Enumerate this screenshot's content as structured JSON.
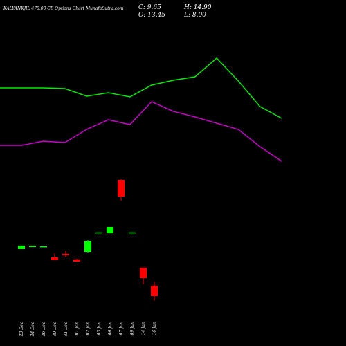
{
  "chart_data": [
    {
      "type": "candlestick",
      "title": "KALYANKJIL 470.00 CE Options Chart MunafaSutra.com",
      "ohlc_labels": [
        "C: 9.65",
        "H: 14.90",
        "O: 13.45",
        "L: 8.00"
      ],
      "categories": [
        "23 Dec",
        "24 Dec",
        "26 Dec",
        "30 Dec",
        "31 Dec",
        "01 Jan",
        "02 Jan",
        "03 Jan",
        "06 Jan",
        "07 Jan",
        "09 Jan",
        "14 Jan",
        "16 Jan"
      ],
      "open": [
        26.86,
        27.62,
        27.87,
        23.82,
        25.09,
        23.06,
        25.85,
        32.93,
        32.68,
        52.16,
        32.93,
        20.03,
        13.45
      ],
      "close": [
        28.12,
        28.12,
        27.9,
        22.81,
        24.58,
        22.31,
        29.9,
        33.0,
        34.96,
        46.09,
        33.0,
        16.23,
        9.65
      ],
      "high": [
        28.12,
        28.12,
        27.9,
        25.34,
        26.35,
        23.32,
        30.15,
        33.0,
        34.96,
        52.41,
        33.0,
        20.03,
        14.9
      ],
      "low": [
        26.86,
        27.62,
        27.87,
        22.81,
        24.08,
        22.31,
        25.59,
        32.93,
        32.68,
        44.57,
        32.93,
        13.96,
        8.0
      ],
      "up_color": "#00ff00",
      "down_color": "#ff0000",
      "ylim": [
        -8.56,
        117.94
      ]
    },
    {
      "type": "line",
      "series": [
        {
          "color": "#00ee00",
          "values": [
            85.81,
            85.81,
            85.81,
            85.56,
            82.77,
            84.04,
            82.52,
            86.82,
            88.59,
            89.86,
            96.69,
            88.34,
            78.97,
            74.68
          ]
        },
        {
          "color": "#cc00cc",
          "values": [
            64.81,
            64.81,
            66.33,
            65.82,
            70.63,
            74.17,
            72.4,
            80.75,
            77.21,
            75.18,
            72.91,
            70.63,
            64.3,
            58.99
          ]
        }
      ],
      "ylim": [
        -8.56,
        117.94
      ]
    }
  ]
}
